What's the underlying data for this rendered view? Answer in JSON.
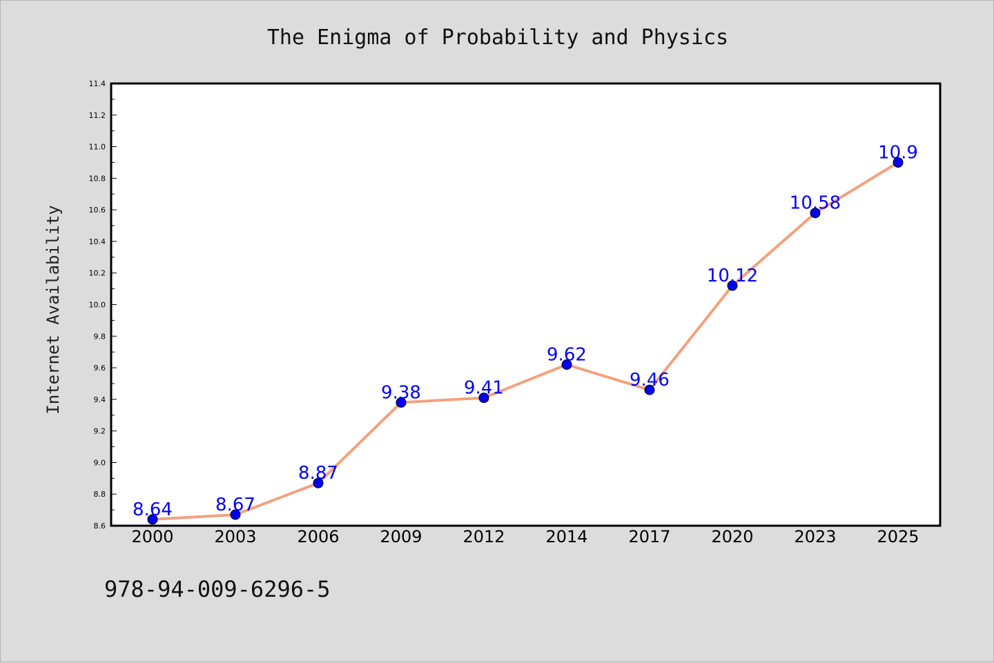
{
  "chart_data": {
    "type": "line",
    "title": "The Enigma of Probability and Physics",
    "xlabel": "",
    "ylabel": "Internet Availability",
    "categories": [
      "2000",
      "2003",
      "2006",
      "2009",
      "2012",
      "2014",
      "2017",
      "2020",
      "2023",
      "2025"
    ],
    "series": [
      {
        "values": [
          8.64,
          8.67,
          8.87,
          9.38,
          9.41,
          9.62,
          9.46,
          10.12,
          10.58,
          10.9
        ]
      }
    ],
    "data_labels": [
      "8.64",
      "8.67",
      "8.87",
      "9.38",
      "9.41",
      "9.62",
      "9.46",
      "10.12",
      "10.58",
      "10.9"
    ],
    "ylim": [
      8.6,
      11.4
    ],
    "yticks": [
      "8.6",
      "8.8",
      "9.0",
      "9.2",
      "9.4",
      "9.6",
      "9.8",
      "10.0",
      "10.2",
      "10.4",
      "10.6",
      "10.8",
      "11.0",
      "11.2",
      "11.4"
    ],
    "grid": false,
    "legend": "none",
    "colors": {
      "line": "#f4a07c",
      "marker": "#0000ee",
      "label": "#0000ff",
      "plot_background": "#ffffff",
      "figure_background": "#dcdcdc"
    }
  },
  "footer": {
    "isbn": "978-94-009-6296-5"
  }
}
